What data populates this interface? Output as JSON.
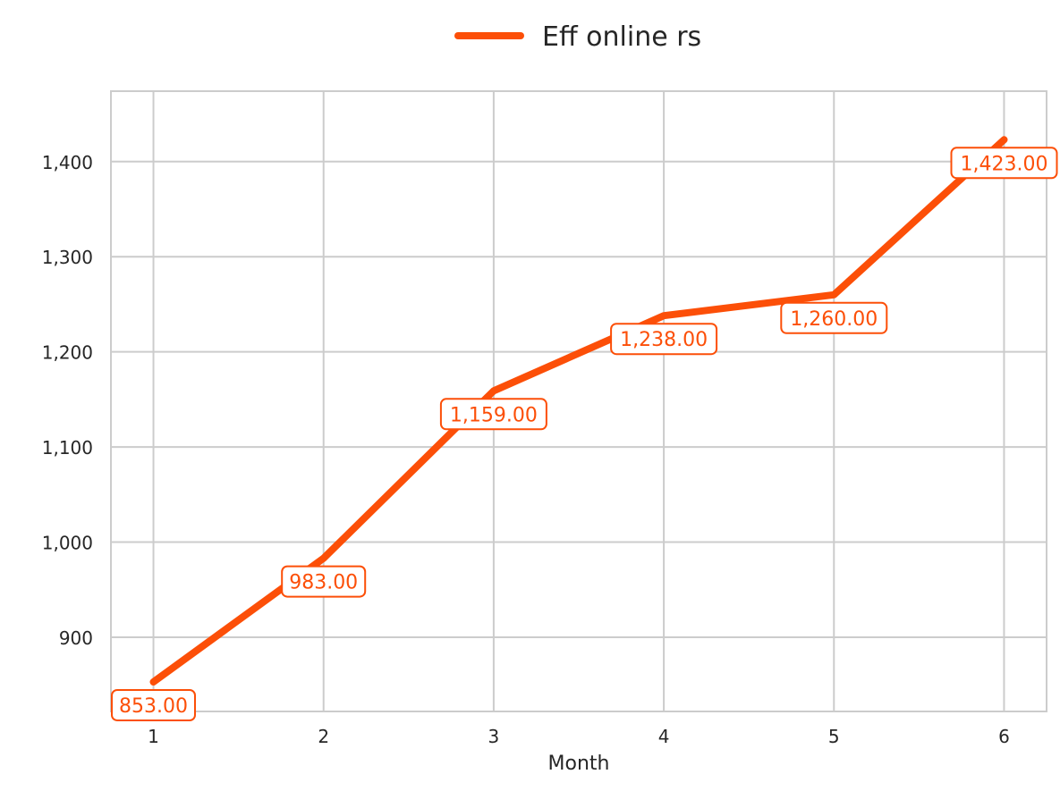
{
  "chart_data": {
    "type": "line",
    "xlabel": "Month",
    "ylabel": "",
    "x": [
      1,
      2,
      3,
      4,
      5,
      6
    ],
    "xlim": [
      0.75,
      6.25
    ],
    "ylim": [
      822,
      1474
    ],
    "yticks": [
      900,
      1000,
      1100,
      1200,
      1300,
      1400
    ],
    "ytick_labels": [
      "900",
      "1,000",
      "1,100",
      "1,200",
      "1,300",
      "1,400"
    ],
    "xtick_labels": [
      "1",
      "2",
      "3",
      "4",
      "5",
      "6"
    ],
    "grid": true,
    "legend_position": "top-center",
    "series": [
      {
        "name": "Eff online rs",
        "color": "#fc4f08",
        "values": [
          853,
          983,
          1159,
          1238,
          1260,
          1423
        ],
        "data_labels": [
          "853.00",
          "983.00",
          "1,159.00",
          "1,238.00",
          "1,260.00",
          "1,423.00"
        ]
      }
    ]
  }
}
